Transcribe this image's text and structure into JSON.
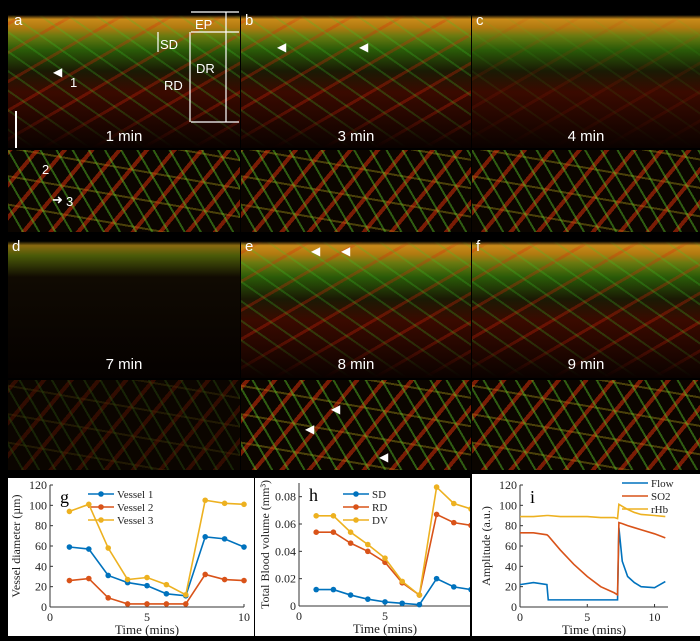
{
  "panels": {
    "a": {
      "letter": "a",
      "time": "1 min",
      "layers": [
        "EP",
        "SD",
        "DR",
        "RD"
      ],
      "arrow_label": "1"
    },
    "b": {
      "letter": "b",
      "time": "3 min"
    },
    "c": {
      "letter": "c",
      "time": "4 min"
    },
    "a_enface": {
      "arrow_labels": [
        "2",
        "3"
      ]
    },
    "d": {
      "letter": "d",
      "time": "7 min"
    },
    "e": {
      "letter": "e",
      "time": "8 min"
    },
    "f": {
      "letter": "f",
      "time": "9 min"
    }
  },
  "colors": {
    "blue": "#0072BD",
    "orange": "#D95319",
    "yellow": "#EDB120"
  },
  "chart_data": [
    {
      "type": "line",
      "panel": "g",
      "xlabel": "Time (mins)",
      "ylabel": "Vessel diameter (µm)",
      "xlim": [
        0,
        10
      ],
      "ylim": [
        0,
        120
      ],
      "xticks": [
        0,
        5,
        10
      ],
      "yticks": [
        0,
        20,
        40,
        60,
        80,
        100,
        120
      ],
      "legend": "top-center",
      "x": [
        1,
        2,
        3,
        4,
        5,
        6,
        7,
        8,
        9,
        10
      ],
      "series": [
        {
          "name": "Vessel 1",
          "color": "#0072BD",
          "values": [
            59,
            57,
            31,
            24,
            21,
            13,
            11,
            69,
            67,
            59
          ]
        },
        {
          "name": "Vessel 2",
          "color": "#D95319",
          "values": [
            26,
            28,
            9,
            3,
            3,
            3,
            3,
            32,
            27,
            26
          ]
        },
        {
          "name": "Vessel 3",
          "color": "#EDB120",
          "values": [
            94,
            101,
            58,
            27,
            29,
            22,
            12,
            105,
            102,
            101
          ]
        }
      ]
    },
    {
      "type": "line",
      "panel": "h",
      "xlabel": "Time (mins)",
      "ylabel": "Total Blood volume (mm³)",
      "xlim": [
        0,
        10
      ],
      "ylim": [
        0,
        0.09
      ],
      "xticks": [
        0,
        5
      ],
      "yticks": [
        0,
        0.02,
        0.04,
        0.06,
        0.08
      ],
      "legend": "top-center",
      "x": [
        1,
        2,
        3,
        4,
        5,
        6,
        7,
        8,
        9,
        10
      ],
      "series": [
        {
          "name": "SD",
          "color": "#0072BD",
          "values": [
            0.012,
            0.012,
            0.008,
            0.005,
            0.003,
            0.002,
            0.001,
            0.02,
            0.014,
            0.012
          ]
        },
        {
          "name": "RD",
          "color": "#D95319",
          "values": [
            0.054,
            0.054,
            0.046,
            0.04,
            0.032,
            0.017,
            0.008,
            0.067,
            0.061,
            0.059
          ]
        },
        {
          "name": "DV",
          "color": "#EDB120",
          "values": [
            0.066,
            0.066,
            0.054,
            0.045,
            0.035,
            0.018,
            0.008,
            0.087,
            0.075,
            0.071
          ]
        }
      ]
    },
    {
      "type": "line",
      "panel": "i",
      "xlabel": "Time (mins)",
      "ylabel": "Amplitude (a.u.)",
      "xlim": [
        0,
        11
      ],
      "ylim": [
        0,
        120
      ],
      "xticks": [
        0,
        5,
        10
      ],
      "yticks": [
        0,
        20,
        40,
        60,
        80,
        100,
        120
      ],
      "legend": "top-right",
      "x": [
        0,
        1,
        2,
        2.1,
        3,
        4,
        5,
        6,
        7,
        7.25,
        7.35,
        7.6,
        8,
        8.5,
        9,
        10,
        10.8
      ],
      "series": [
        {
          "name": "Flow",
          "color": "#0072BD",
          "values": [
            22,
            24,
            22,
            7,
            7,
            7,
            7,
            7,
            7,
            7,
            78,
            45,
            30,
            24,
            20,
            19,
            25
          ]
        },
        {
          "name": "SO2",
          "color": "#D95319",
          "values": [
            73,
            73,
            71,
            70,
            56,
            42,
            30,
            20,
            14,
            12,
            83,
            82,
            80,
            78,
            76,
            72,
            68
          ]
        },
        {
          "name": "rHb",
          "color": "#EDB120",
          "values": [
            89,
            89,
            90,
            90,
            89,
            89,
            89,
            88,
            88,
            87,
            101,
            99,
            96,
            93,
            91,
            90,
            89
          ]
        }
      ]
    }
  ]
}
